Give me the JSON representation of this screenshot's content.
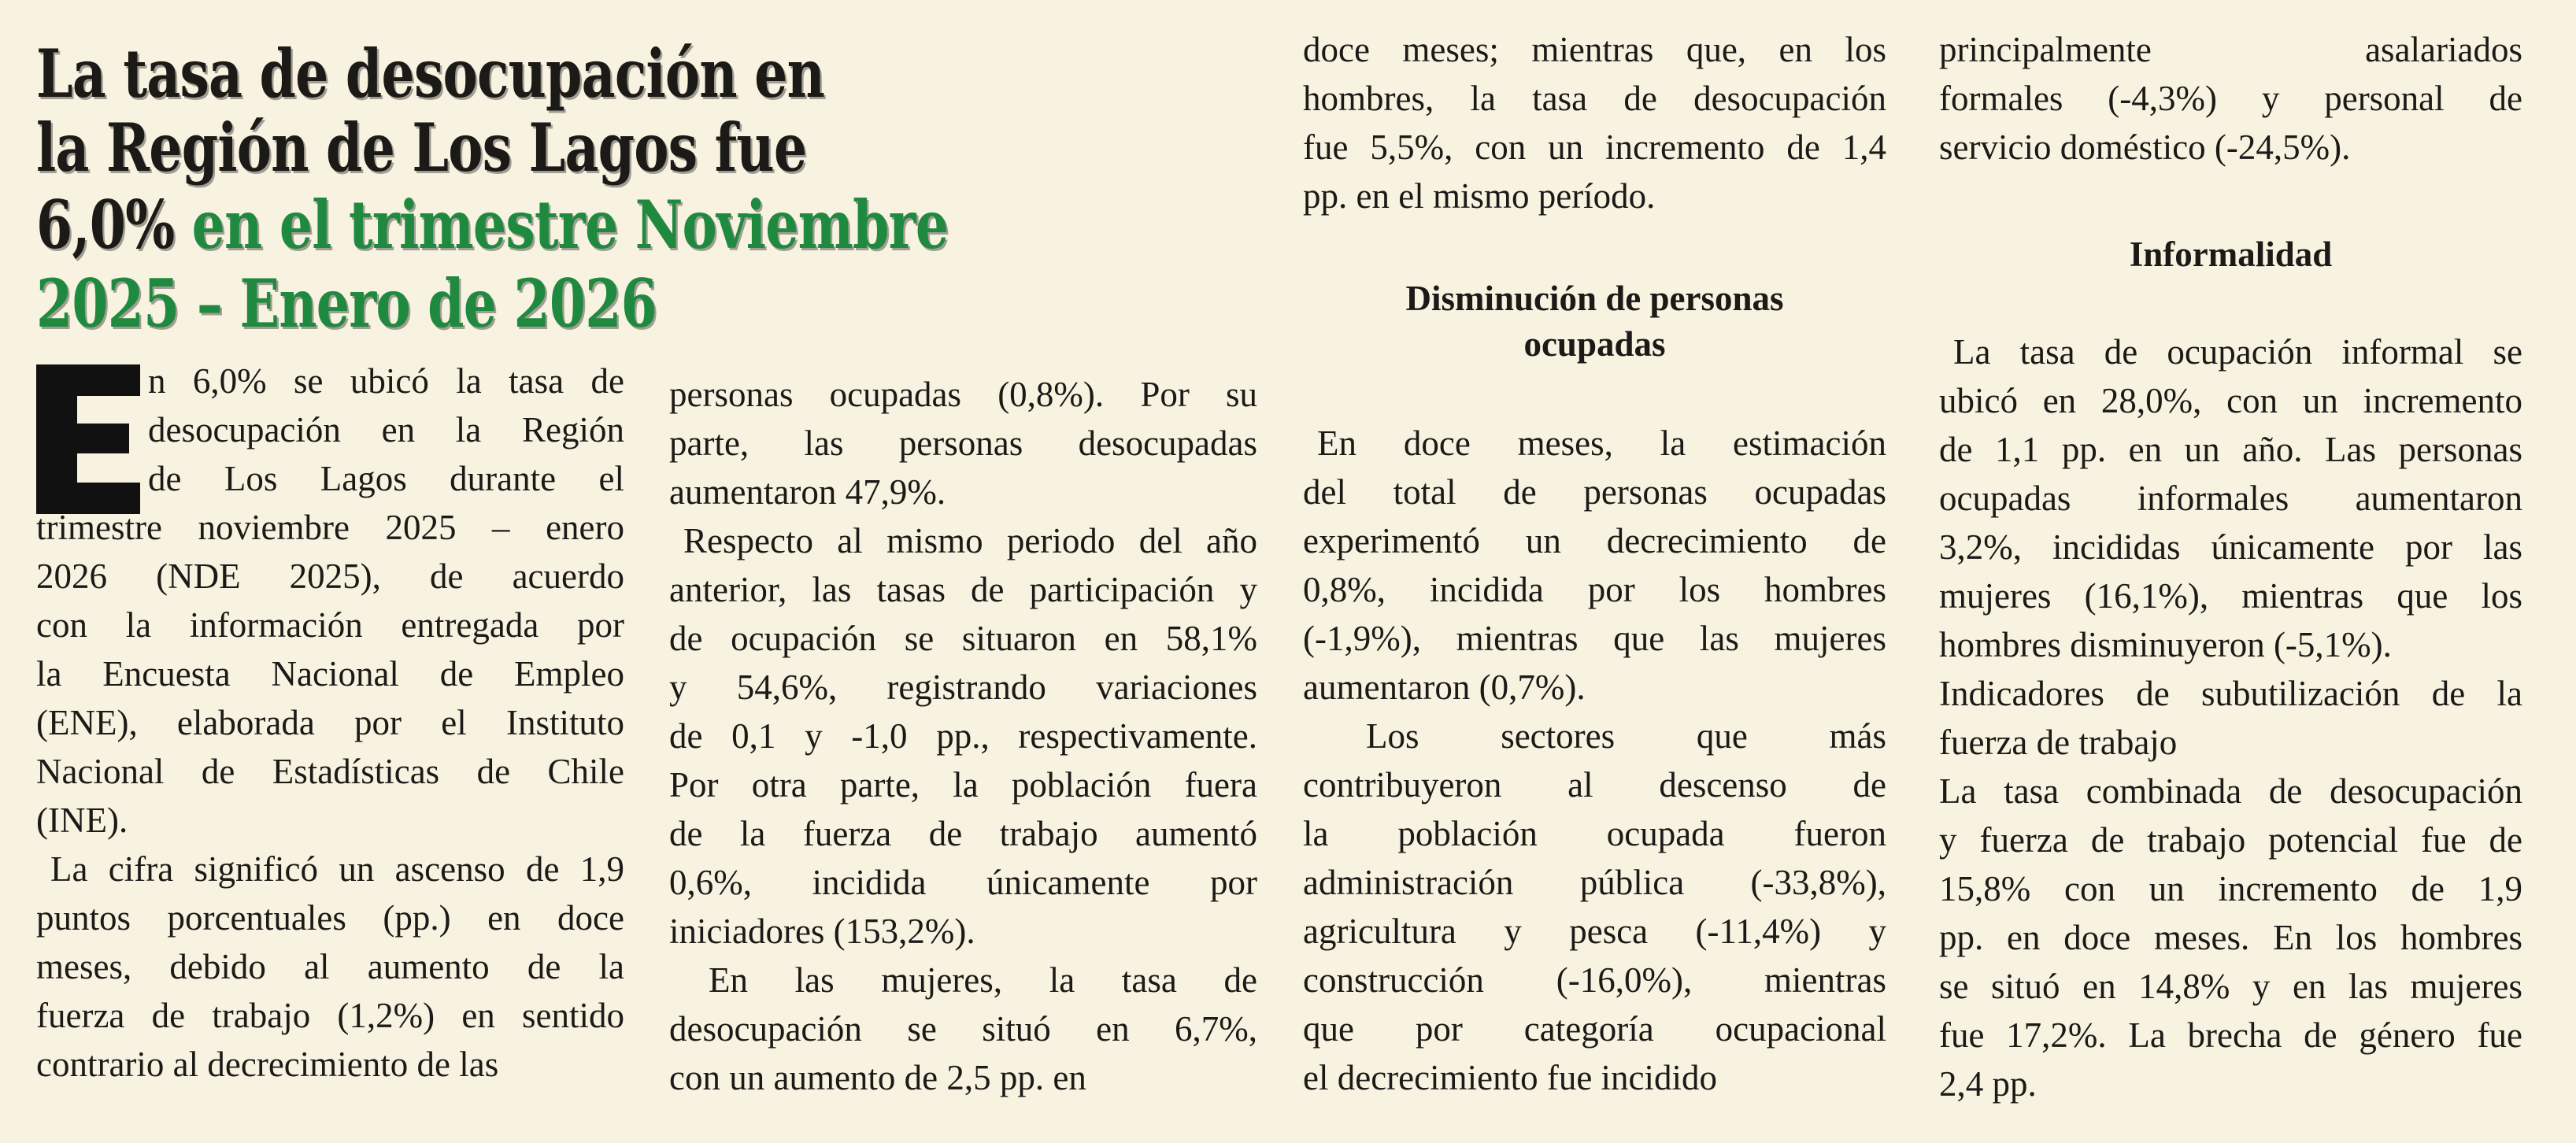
{
  "headline": {
    "line1": "La tasa de desocupación en",
    "line2": "la Región de Los Lagos fue",
    "line3_black": " 6,0%",
    "line3_green": " en el trimestre Noviembre",
    "line4": "2025 – Enero de 2026"
  },
  "colors": {
    "background": "#f8f2e1",
    "accent_green": "#1f8a3f",
    "text": "#1c1a17"
  },
  "drop_cap": "E",
  "columns": {
    "c1": [
      {
        "lines": [
          "n 6,0% se ubicó la tasa de",
          "desocupación en la Región",
          "de Los Lagos durante el",
          "trimestre noviembre 2025 – enero",
          "2026 (NDE 2025), de acuerdo",
          "con la información entregada por",
          "la Encuesta Nacional de Empleo",
          "(ENE), elaborada por el Instituto",
          "Nacional de Estadísticas de Chile",
          "(INE)."
        ]
      },
      {
        "lines": [
          "La cifra significó un ascenso de 1,9",
          "puntos porcentuales (pp.) en doce",
          "meses, debido al aumento de la",
          "fuerza de trabajo (1,2%) en sentido",
          "contrario al decrecimiento de las"
        ]
      }
    ],
    "c2": [
      {
        "lines": [
          "personas ocupadas (0,8%). Por su",
          "parte, las personas desocupadas",
          "aumentaron 47,9%."
        ]
      },
      {
        "lines": [
          "Respecto al mismo periodo del año",
          "anterior, las tasas de participación y",
          "de ocupación se situaron en 58,1%",
          "y 54,6%, registrando variaciones",
          "de 0,1 y -1,0 pp., respectivamente.",
          "Por otra parte, la población fuera",
          "de la fuerza de trabajo aumentó",
          "0,6%, incidida únicamente por",
          "iniciadores (153,2%)."
        ]
      },
      {
        "lines": [
          "En las mujeres, la tasa de",
          "desocupación se situó en 6,7%,",
          "con un aumento de 2,5 pp. en"
        ]
      }
    ],
    "c3": [
      {
        "lines": [
          "doce meses; mientras que, en los",
          "hombres, la tasa de desocupación",
          "fue 5,5%, con un incremento de 1,4",
          "pp. en el mismo período."
        ]
      },
      {
        "heading": "Disminución de personas ocupadas",
        "heading_lines": [
          "Disminución de personas",
          "ocupadas"
        ]
      },
      {
        "lines": [
          "En doce meses, la estimación",
          "del total de personas ocupadas",
          "experimentó un decrecimiento de",
          "0,8%, incidida por los hombres",
          "(-1,9%), mientras que las mujeres",
          "aumentaron (0,7%)."
        ]
      },
      {
        "lines": [
          "Los sectores que más",
          "contribuyeron al descenso de",
          "la población ocupada fueron",
          "administración pública (-33,8%),",
          "agricultura y pesca (-11,4%) y",
          "construcción (-16,0%), mientras",
          "que por categoría ocupacional",
          "el decrecimiento fue incidido"
        ]
      }
    ],
    "c4": [
      {
        "lines": [
          "principalmente asalariados",
          "formales (-4,3%) y personal de",
          "servicio doméstico (-24,5%)."
        ]
      },
      {
        "heading": "Informalidad"
      },
      {
        "lines": [
          "La tasa de ocupación informal se",
          "ubicó en 28,0%, con un incremento",
          "de 1,1 pp. en un año. Las personas",
          "ocupadas informales aumentaron",
          "3,2%, incididas únicamente por las",
          "mujeres (16,1%), mientras que los",
          "hombres disminuyeron (-5,1%)."
        ]
      },
      {
        "lines": [
          "Indicadores de subutilización de la",
          "fuerza de trabajo"
        ]
      },
      {
        "lines": [
          "La tasa combinada de desocupación",
          "y fuerza de trabajo potencial fue de",
          "15,8% con un incremento de 1,9",
          "pp. en doce meses. En los hombres",
          "se situó en 14,8% y en las mujeres",
          "fue 17,2%. La brecha de género fue",
          "2,4 pp."
        ]
      }
    ]
  }
}
